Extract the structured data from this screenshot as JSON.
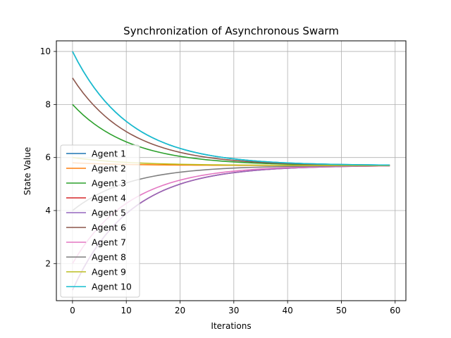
{
  "chart_data": {
    "type": "line",
    "title": "Synchronization of Asynchronous Swarm",
    "xlabel": "Iterations",
    "ylabel": "State Value",
    "xlim": [
      -3,
      62
    ],
    "ylim": [
      0.6,
      10.4
    ],
    "xticks": [
      0,
      10,
      20,
      30,
      40,
      50,
      60
    ],
    "yticks": [
      2,
      4,
      6,
      8,
      10
    ],
    "grid": true,
    "legend_position": "lower-left",
    "x_range": [
      0,
      59
    ],
    "converged_value": 5.7,
    "decay_rate": 0.095,
    "series": [
      {
        "name": "Agent 1",
        "color": "#1f77b4",
        "start": 10.0
      },
      {
        "name": "Agent 2",
        "color": "#ff7f0e",
        "start": 5.8
      },
      {
        "name": "Agent 3",
        "color": "#2ca02c",
        "start": 8.0
      },
      {
        "name": "Agent 4",
        "color": "#d62728",
        "start": 1.0
      },
      {
        "name": "Agent 5",
        "color": "#9467bd",
        "start": 1.0
      },
      {
        "name": "Agent 6",
        "color": "#8c564b",
        "start": 9.0
      },
      {
        "name": "Agent 7",
        "color": "#e377c2",
        "start": 2.0
      },
      {
        "name": "Agent 8",
        "color": "#7f7f7f",
        "start": 4.0
      },
      {
        "name": "Agent 9",
        "color": "#bcbd22",
        "start": 6.0
      },
      {
        "name": "Agent 10",
        "color": "#17becf",
        "start": 10.0
      }
    ]
  }
}
